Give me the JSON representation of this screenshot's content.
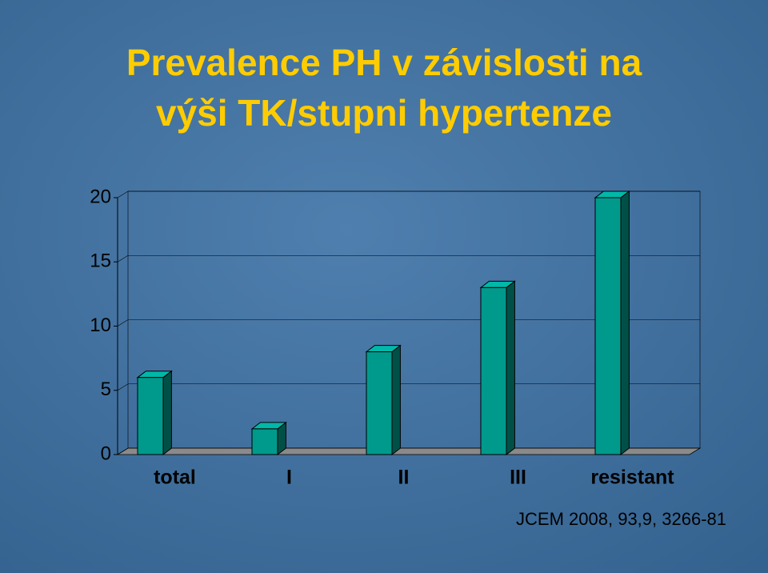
{
  "chart_data": {
    "type": "bar3d",
    "title": [
      "Prevalence PH  v závislosti na",
      "výši TK/stupni hypertenze"
    ],
    "categories": [
      "total",
      "I",
      "II",
      "III",
      "resistant"
    ],
    "values": [
      6,
      2,
      8,
      13,
      20
    ],
    "color": "#009a8c",
    "ylim": [
      0,
      20
    ],
    "yticks": [
      0,
      5,
      10,
      15,
      20
    ],
    "grid": true,
    "source": "JCEM 2008, 93,9, 3266-81"
  }
}
